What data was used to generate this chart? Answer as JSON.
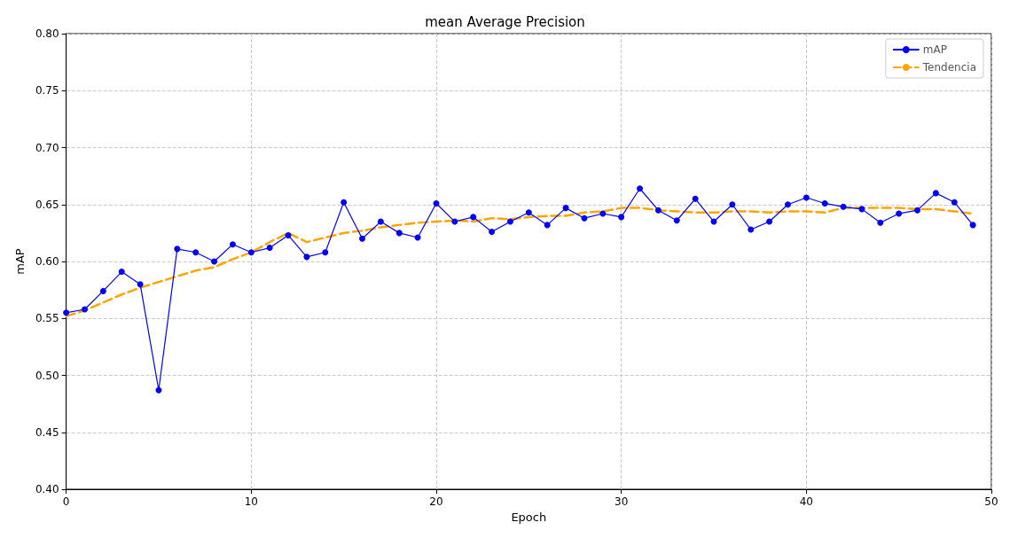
{
  "chart_data": {
    "type": "line",
    "title": "mean Average Precision",
    "xlabel": "Epoch",
    "ylabel": "mAP",
    "x": [
      0,
      1,
      2,
      3,
      4,
      5,
      6,
      7,
      8,
      9,
      10,
      11,
      12,
      13,
      14,
      15,
      16,
      17,
      18,
      19,
      20,
      21,
      22,
      23,
      24,
      25,
      26,
      27,
      28,
      29,
      30,
      31,
      32,
      33,
      34,
      35,
      36,
      37,
      38,
      39,
      40,
      41,
      42,
      43,
      44,
      45,
      46,
      47,
      48,
      49
    ],
    "series": [
      {
        "name": "mAP",
        "color": "#0000ff",
        "marker": "circle",
        "line_style": "solid",
        "values": [
          0.555,
          0.558,
          0.574,
          0.591,
          0.58,
          0.487,
          0.611,
          0.608,
          0.6,
          0.615,
          0.608,
          0.612,
          0.623,
          0.604,
          0.608,
          0.652,
          0.62,
          0.635,
          0.625,
          0.621,
          0.651,
          0.635,
          0.639,
          0.626,
          0.635,
          0.643,
          0.632,
          0.647,
          0.638,
          0.642,
          0.639,
          0.664,
          0.645,
          0.636,
          0.655,
          0.635,
          0.65,
          0.628,
          0.635,
          0.65,
          0.656,
          0.651,
          0.648,
          0.646,
          0.634,
          0.642,
          0.645,
          0.66,
          0.652,
          0.632
        ]
      },
      {
        "name": "Tendencia",
        "color": "#ffa500",
        "marker": "none",
        "line_style": "dashed",
        "values": [
          0.552,
          0.557,
          0.564,
          0.571,
          0.577,
          0.582,
          0.587,
          0.592,
          0.595,
          0.602,
          0.608,
          0.617,
          0.625,
          0.617,
          0.621,
          0.625,
          0.627,
          0.63,
          0.632,
          0.634,
          0.635,
          0.636,
          0.635,
          0.638,
          0.637,
          0.639,
          0.64,
          0.64,
          0.643,
          0.644,
          0.647,
          0.647,
          0.645,
          0.644,
          0.643,
          0.643,
          0.644,
          0.644,
          0.643,
          0.644,
          0.644,
          0.643,
          0.647,
          0.647,
          0.647,
          0.647,
          0.646,
          0.646,
          0.644,
          0.642
        ]
      }
    ],
    "xlim": [
      0,
      50
    ],
    "xticks": [
      0,
      10,
      20,
      30,
      40,
      50
    ],
    "ylim": [
      0.4,
      0.8
    ],
    "yticks": [
      {
        "value": 0.4,
        "label": "0.40"
      },
      {
        "value": 0.45,
        "label": "0.45"
      },
      {
        "value": 0.5,
        "label": "0.50"
      },
      {
        "value": 0.55,
        "label": "0.55"
      },
      {
        "value": 0.6,
        "label": "0.60"
      },
      {
        "value": 0.65,
        "label": "0.65"
      },
      {
        "value": 0.7,
        "label": "0.70"
      },
      {
        "value": 0.75,
        "label": "0.75"
      },
      {
        "value": 0.8,
        "label": "0.80"
      }
    ],
    "grid": true,
    "legend": "top right"
  }
}
